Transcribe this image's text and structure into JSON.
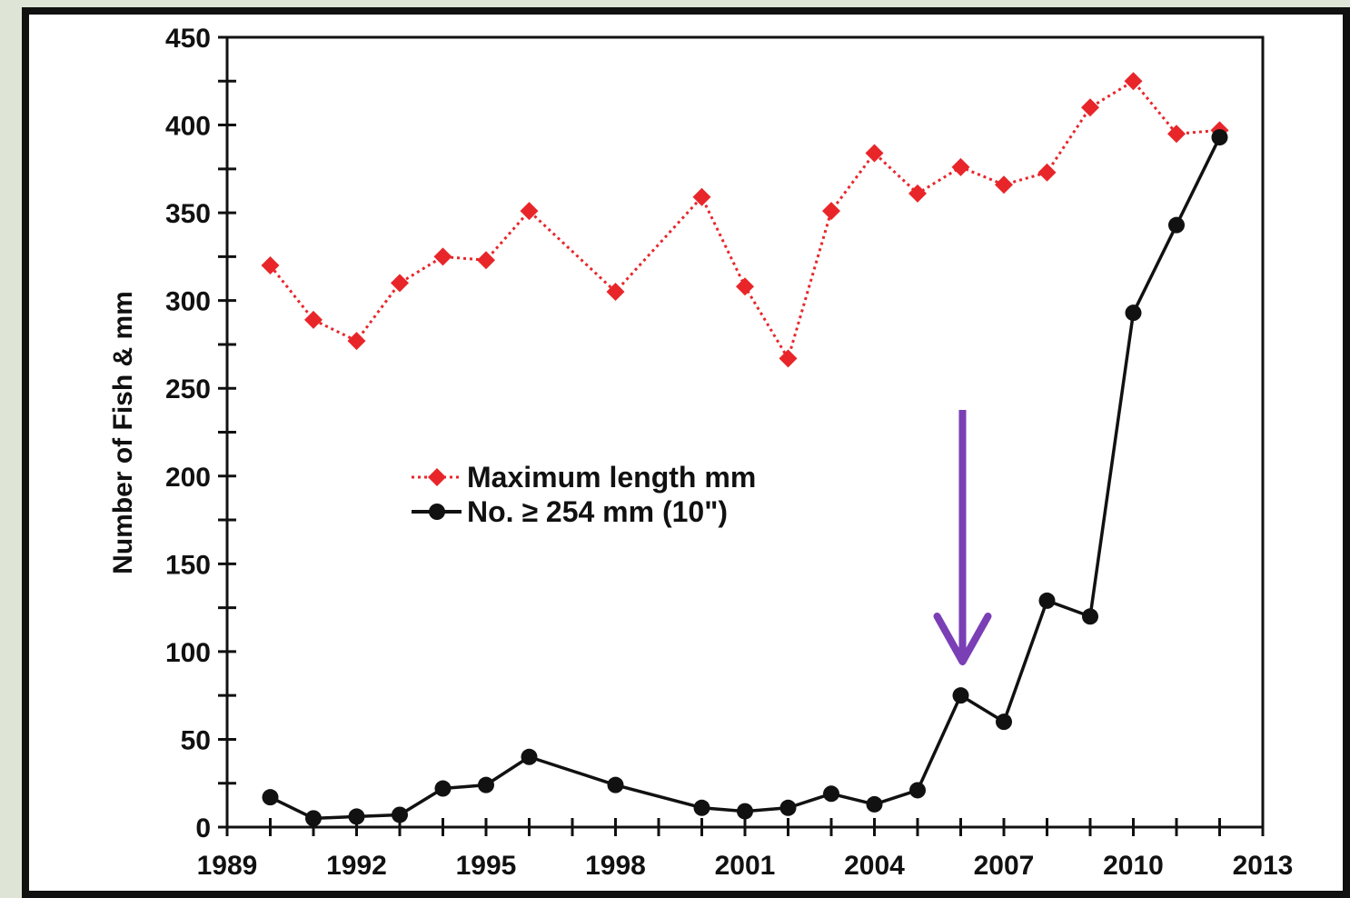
{
  "chart_data": {
    "type": "line",
    "title": "",
    "xlabel": "",
    "ylabel": "Number of Fish & mm",
    "xlim": [
      1989,
      2013
    ],
    "ylim": [
      0,
      450
    ],
    "x_ticks": [
      1989,
      1992,
      1995,
      1998,
      2001,
      2004,
      2007,
      2010,
      2013
    ],
    "y_ticks": [
      0,
      50,
      100,
      150,
      200,
      250,
      300,
      350,
      400,
      450
    ],
    "grid": false,
    "legend_position": "center-left",
    "series": [
      {
        "name": "Maximum length mm",
        "color": "#e8262a",
        "style": "dotted",
        "marker": "diamond",
        "points": [
          [
            1990,
            320
          ],
          [
            1991,
            289
          ],
          [
            1992,
            277
          ],
          [
            1993,
            310
          ],
          [
            1994,
            325
          ],
          [
            1995,
            323
          ],
          [
            1996,
            351
          ],
          [
            1998,
            305
          ],
          [
            2000,
            359
          ],
          [
            2001,
            308
          ],
          [
            2002,
            267
          ],
          [
            2003,
            351
          ],
          [
            2004,
            384
          ],
          [
            2005,
            361
          ],
          [
            2006,
            376
          ],
          [
            2007,
            366
          ],
          [
            2008,
            373
          ],
          [
            2009,
            410
          ],
          [
            2010,
            425
          ],
          [
            2011,
            395
          ],
          [
            2012,
            397
          ]
        ]
      },
      {
        "name": "No. ≥ 254 mm  (10\")",
        "color": "#111111",
        "style": "solid",
        "marker": "circle",
        "points": [
          [
            1990,
            17
          ],
          [
            1991,
            5
          ],
          [
            1992,
            6
          ],
          [
            1993,
            7
          ],
          [
            1994,
            22
          ],
          [
            1995,
            24
          ],
          [
            1996,
            40
          ],
          [
            1998,
            24
          ],
          [
            2000,
            11
          ],
          [
            2001,
            9
          ],
          [
            2002,
            11
          ],
          [
            2003,
            19
          ],
          [
            2004,
            13
          ],
          [
            2005,
            21
          ],
          [
            2006,
            75
          ],
          [
            2007,
            60
          ],
          [
            2008,
            129
          ],
          [
            2009,
            120
          ],
          [
            2010,
            293
          ],
          [
            2011,
            343
          ],
          [
            2012,
            393
          ]
        ]
      }
    ],
    "annotations": [
      {
        "type": "arrow",
        "color": "#7a3fb5",
        "direction": "down",
        "at_year": 2006
      }
    ]
  }
}
